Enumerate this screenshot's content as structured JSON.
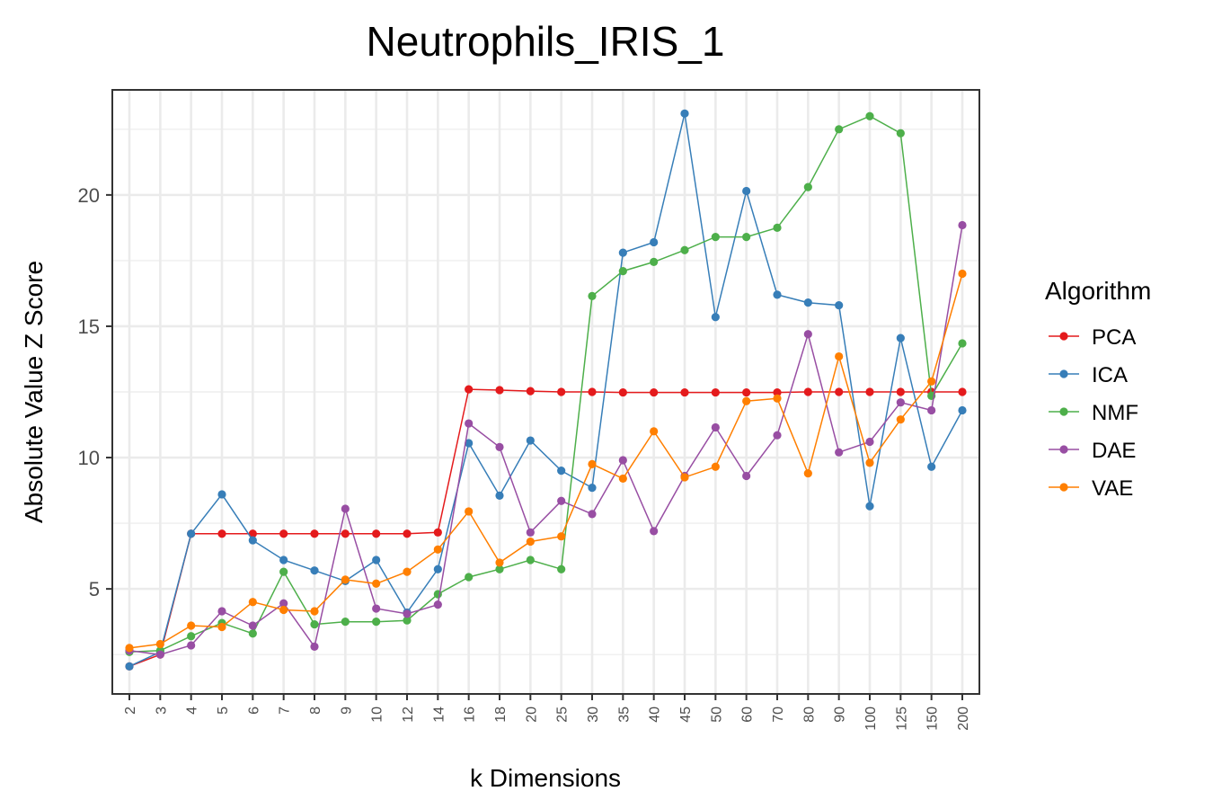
{
  "chart_data": {
    "type": "line",
    "title": "Neutrophils_IRIS_1",
    "xlabel": "k Dimensions",
    "ylabel": "Absolute Value Z Score",
    "legend_title": "Algorithm",
    "legend_position": "right",
    "grid": true,
    "ylim": [
      1.0,
      24.0
    ],
    "yticks": [
      5,
      10,
      15,
      20
    ],
    "categories": [
      "2",
      "3",
      "4",
      "5",
      "6",
      "7",
      "8",
      "9",
      "10",
      "12",
      "14",
      "16",
      "18",
      "20",
      "25",
      "30",
      "35",
      "40",
      "45",
      "50",
      "60",
      "70",
      "80",
      "90",
      "100",
      "125",
      "150",
      "200"
    ],
    "series": [
      {
        "name": "PCA",
        "color": "#e41a1c",
        "values": [
          2.05,
          2.5,
          7.1,
          7.1,
          7.1,
          7.1,
          7.1,
          7.1,
          7.1,
          7.1,
          7.15,
          12.6,
          12.57,
          12.53,
          12.5,
          12.5,
          12.48,
          12.48,
          12.48,
          12.48,
          12.48,
          12.48,
          12.5,
          12.5,
          12.5,
          12.5,
          12.5,
          12.5
        ]
      },
      {
        "name": "ICA",
        "color": "#377eb8",
        "values": [
          2.05,
          2.6,
          7.1,
          8.6,
          6.85,
          6.1,
          5.7,
          5.3,
          6.1,
          4.1,
          5.75,
          10.55,
          8.55,
          10.65,
          9.5,
          8.85,
          17.8,
          18.2,
          23.1,
          15.35,
          20.15,
          16.2,
          15.9,
          15.8,
          8.15,
          14.55,
          9.65,
          11.8
        ]
      },
      {
        "name": "NMF",
        "color": "#4daf4a",
        "values": [
          2.6,
          2.65,
          3.2,
          3.7,
          3.3,
          5.65,
          3.65,
          3.75,
          3.75,
          3.8,
          4.8,
          5.45,
          5.75,
          6.1,
          5.75,
          16.15,
          17.1,
          17.45,
          17.9,
          18.4,
          18.4,
          18.75,
          20.3,
          22.5,
          23.0,
          22.35,
          12.35,
          14.35
        ]
      },
      {
        "name": "DAE",
        "color": "#984ea3",
        "values": [
          2.65,
          2.5,
          2.85,
          4.15,
          3.6,
          4.45,
          2.8,
          8.05,
          4.25,
          4.05,
          4.4,
          11.3,
          10.4,
          7.15,
          8.35,
          7.85,
          9.9,
          7.2,
          9.3,
          11.15,
          9.3,
          10.85,
          14.7,
          10.2,
          10.6,
          12.1,
          11.8,
          18.85
        ]
      },
      {
        "name": "VAE",
        "color": "#ff7f00",
        "values": [
          2.75,
          2.9,
          3.6,
          3.55,
          4.5,
          4.2,
          4.15,
          5.35,
          5.2,
          5.65,
          6.5,
          7.95,
          6.0,
          6.8,
          7.0,
          9.75,
          9.2,
          11.0,
          9.25,
          9.65,
          12.15,
          12.25,
          9.4,
          13.85,
          9.8,
          11.45,
          12.9,
          17.0
        ]
      }
    ]
  }
}
